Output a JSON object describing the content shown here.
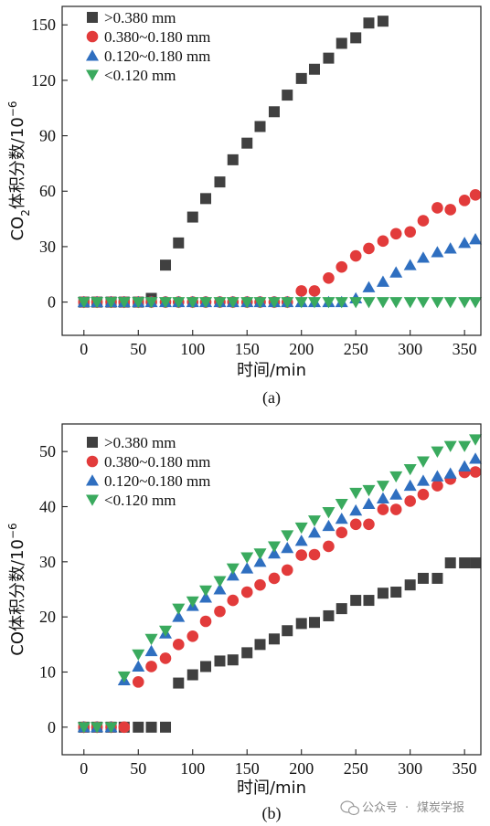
{
  "colors": {
    "gt_0380": "#404040",
    "r_0380_0180": "#e23b3b",
    "r_0120_0180": "#2f6fc0",
    "lt_0120": "#3aaa5e"
  },
  "watermark": {
    "dot": "·",
    "text_a": "公众号",
    "text_b": "煤炭学报",
    "icon": "wechat-icon"
  },
  "chart_data": [
    {
      "type": "scatter",
      "panel_label": "(a)",
      "title": "",
      "xlabel": "时间/min",
      "ylabel": "CO₂体积分数/10⁻⁶",
      "ylabel_parts": {
        "pre": "CO",
        "sub": "2",
        "mid": "体积分数/10",
        "sup": "−6"
      },
      "xlim": [
        -20,
        365
      ],
      "ylim": [
        -18,
        160
      ],
      "xticks": [
        0,
        50,
        100,
        150,
        200,
        250,
        300,
        350
      ],
      "yticks": [
        0,
        30,
        60,
        90,
        120,
        150
      ],
      "legend_position": "top-left",
      "series": [
        {
          "name": ">0.380 mm",
          "marker": "square",
          "color": "#404040",
          "x": [
            0,
            12,
            25,
            37,
            50,
            62,
            75,
            87,
            100,
            112,
            125,
            137,
            150,
            162,
            175,
            187,
            200,
            212,
            225,
            237,
            250,
            262,
            275
          ],
          "y": [
            0,
            0,
            0,
            0,
            0,
            2,
            20,
            32,
            46,
            56,
            65,
            77,
            86,
            95,
            103,
            112,
            121,
            126,
            132,
            140,
            143,
            151,
            152
          ]
        },
        {
          "name": "0.380~0.180 mm",
          "marker": "circle",
          "color": "#e23b3b",
          "x": [
            0,
            12,
            25,
            37,
            50,
            62,
            75,
            87,
            100,
            112,
            125,
            137,
            150,
            162,
            175,
            187,
            200,
            212,
            225,
            237,
            250,
            262,
            275,
            287,
            300,
            312,
            325,
            337,
            350,
            360
          ],
          "y": [
            0,
            0,
            0,
            0,
            0,
            0,
            0,
            0,
            0,
            0,
            0,
            0,
            0,
            0,
            0,
            0,
            6,
            6,
            13,
            19,
            25,
            29,
            33,
            37,
            38,
            44,
            51,
            50,
            55,
            58
          ]
        },
        {
          "name": "0.120~0.180 mm",
          "marker": "triangle-up",
          "color": "#2f6fc0",
          "x": [
            0,
            12,
            25,
            37,
            50,
            62,
            75,
            87,
            100,
            112,
            125,
            137,
            150,
            162,
            175,
            187,
            200,
            212,
            225,
            237,
            250,
            262,
            275,
            287,
            300,
            312,
            325,
            337,
            350,
            360
          ],
          "y": [
            0,
            0,
            0,
            0,
            0,
            0,
            0,
            0,
            0,
            0,
            0,
            0,
            0,
            0,
            0,
            0,
            0,
            0,
            0,
            0,
            2,
            8,
            11,
            16,
            20,
            24,
            27,
            29,
            32,
            34
          ]
        },
        {
          "name": "<0.120 mm",
          "marker": "triangle-down",
          "color": "#3aaa5e",
          "x": [
            0,
            12,
            25,
            37,
            50,
            62,
            75,
            87,
            100,
            112,
            125,
            137,
            150,
            162,
            175,
            187,
            200,
            212,
            225,
            237,
            250,
            262,
            275,
            287,
            300,
            312,
            325,
            337,
            350,
            360
          ],
          "y": [
            0,
            0,
            0,
            0,
            0,
            0,
            0,
            0,
            0,
            0,
            0,
            0,
            0,
            0,
            0,
            0,
            0,
            0,
            0,
            0,
            0,
            0,
            0,
            0,
            0,
            0,
            0,
            0,
            0,
            0
          ]
        }
      ]
    },
    {
      "type": "scatter",
      "panel_label": "(b)",
      "title": "",
      "xlabel": "时间/min",
      "ylabel": "CO体积分数/10⁻⁶",
      "ylabel_parts": {
        "pre": "CO体积分数/10",
        "sub": "",
        "mid": "",
        "sup": "−6"
      },
      "xlim": [
        -20,
        365
      ],
      "ylim": [
        -5,
        55
      ],
      "xticks": [
        0,
        50,
        100,
        150,
        200,
        250,
        300,
        350
      ],
      "yticks": [
        0,
        10,
        20,
        30,
        40,
        50
      ],
      "legend_position": "top-left",
      "series": [
        {
          "name": ">0.380 mm",
          "marker": "square",
          "color": "#404040",
          "x": [
            0,
            12,
            25,
            37,
            50,
            62,
            75,
            87,
            100,
            112,
            125,
            137,
            150,
            162,
            175,
            187,
            200,
            212,
            225,
            237,
            250,
            262,
            275,
            287,
            300,
            312,
            325,
            337,
            350,
            360
          ],
          "y": [
            0,
            0,
            0,
            0,
            0,
            0,
            0,
            8,
            9.5,
            11,
            12,
            12.2,
            13.5,
            15,
            16,
            17.5,
            18.8,
            19,
            20.2,
            21.5,
            23,
            23,
            24.3,
            24.5,
            25.8,
            27,
            27,
            29.8,
            29.8,
            29.8
          ]
        },
        {
          "name": "0.380~0.180 mm",
          "marker": "circle",
          "color": "#e23b3b",
          "x": [
            0,
            12,
            25,
            37,
            50,
            62,
            75,
            87,
            100,
            112,
            125,
            137,
            150,
            162,
            175,
            187,
            200,
            212,
            225,
            237,
            250,
            262,
            275,
            287,
            300,
            312,
            325,
            337,
            350,
            360
          ],
          "y": [
            0,
            0,
            0,
            0,
            8.2,
            11,
            12.5,
            15,
            16.5,
            19.2,
            21,
            23,
            24.5,
            25.8,
            27,
            28.5,
            31.2,
            31.3,
            32.8,
            35.3,
            36.8,
            36.8,
            39.5,
            39.5,
            41,
            42.2,
            43.8,
            45,
            46.2,
            46.3
          ]
        },
        {
          "name": "0.120~0.180 mm",
          "marker": "triangle-up",
          "color": "#2f6fc0",
          "x": [
            0,
            12,
            25,
            37,
            50,
            62,
            75,
            87,
            100,
            112,
            125,
            137,
            150,
            162,
            175,
            187,
            200,
            212,
            225,
            237,
            250,
            262,
            275,
            287,
            300,
            312,
            325,
            337,
            350,
            360
          ],
          "y": [
            0,
            0,
            0,
            8.5,
            11,
            13.8,
            17,
            20,
            22,
            23.5,
            25,
            27.5,
            28.8,
            30,
            31.5,
            32.5,
            33.8,
            35.3,
            36.5,
            37.8,
            39.3,
            40.5,
            41.5,
            42.2,
            43.8,
            44.7,
            45.5,
            46,
            47.3,
            48.7
          ]
        },
        {
          "name": "<0.120 mm",
          "marker": "triangle-down",
          "color": "#3aaa5e",
          "x": [
            0,
            12,
            25,
            37,
            50,
            62,
            75,
            87,
            100,
            112,
            125,
            137,
            150,
            162,
            175,
            187,
            200,
            212,
            225,
            237,
            250,
            262,
            275,
            287,
            300,
            312,
            325,
            337,
            350,
            360
          ],
          "y": [
            0,
            0,
            0,
            9.2,
            13.2,
            16,
            17.5,
            21.5,
            22.8,
            24.8,
            26.5,
            28.8,
            30.8,
            31.5,
            32.8,
            34.8,
            36.2,
            37.5,
            39,
            40.5,
            42.5,
            43,
            43.8,
            45.5,
            46.8,
            48.2,
            50,
            51,
            51,
            52.2
          ]
        }
      ]
    }
  ]
}
